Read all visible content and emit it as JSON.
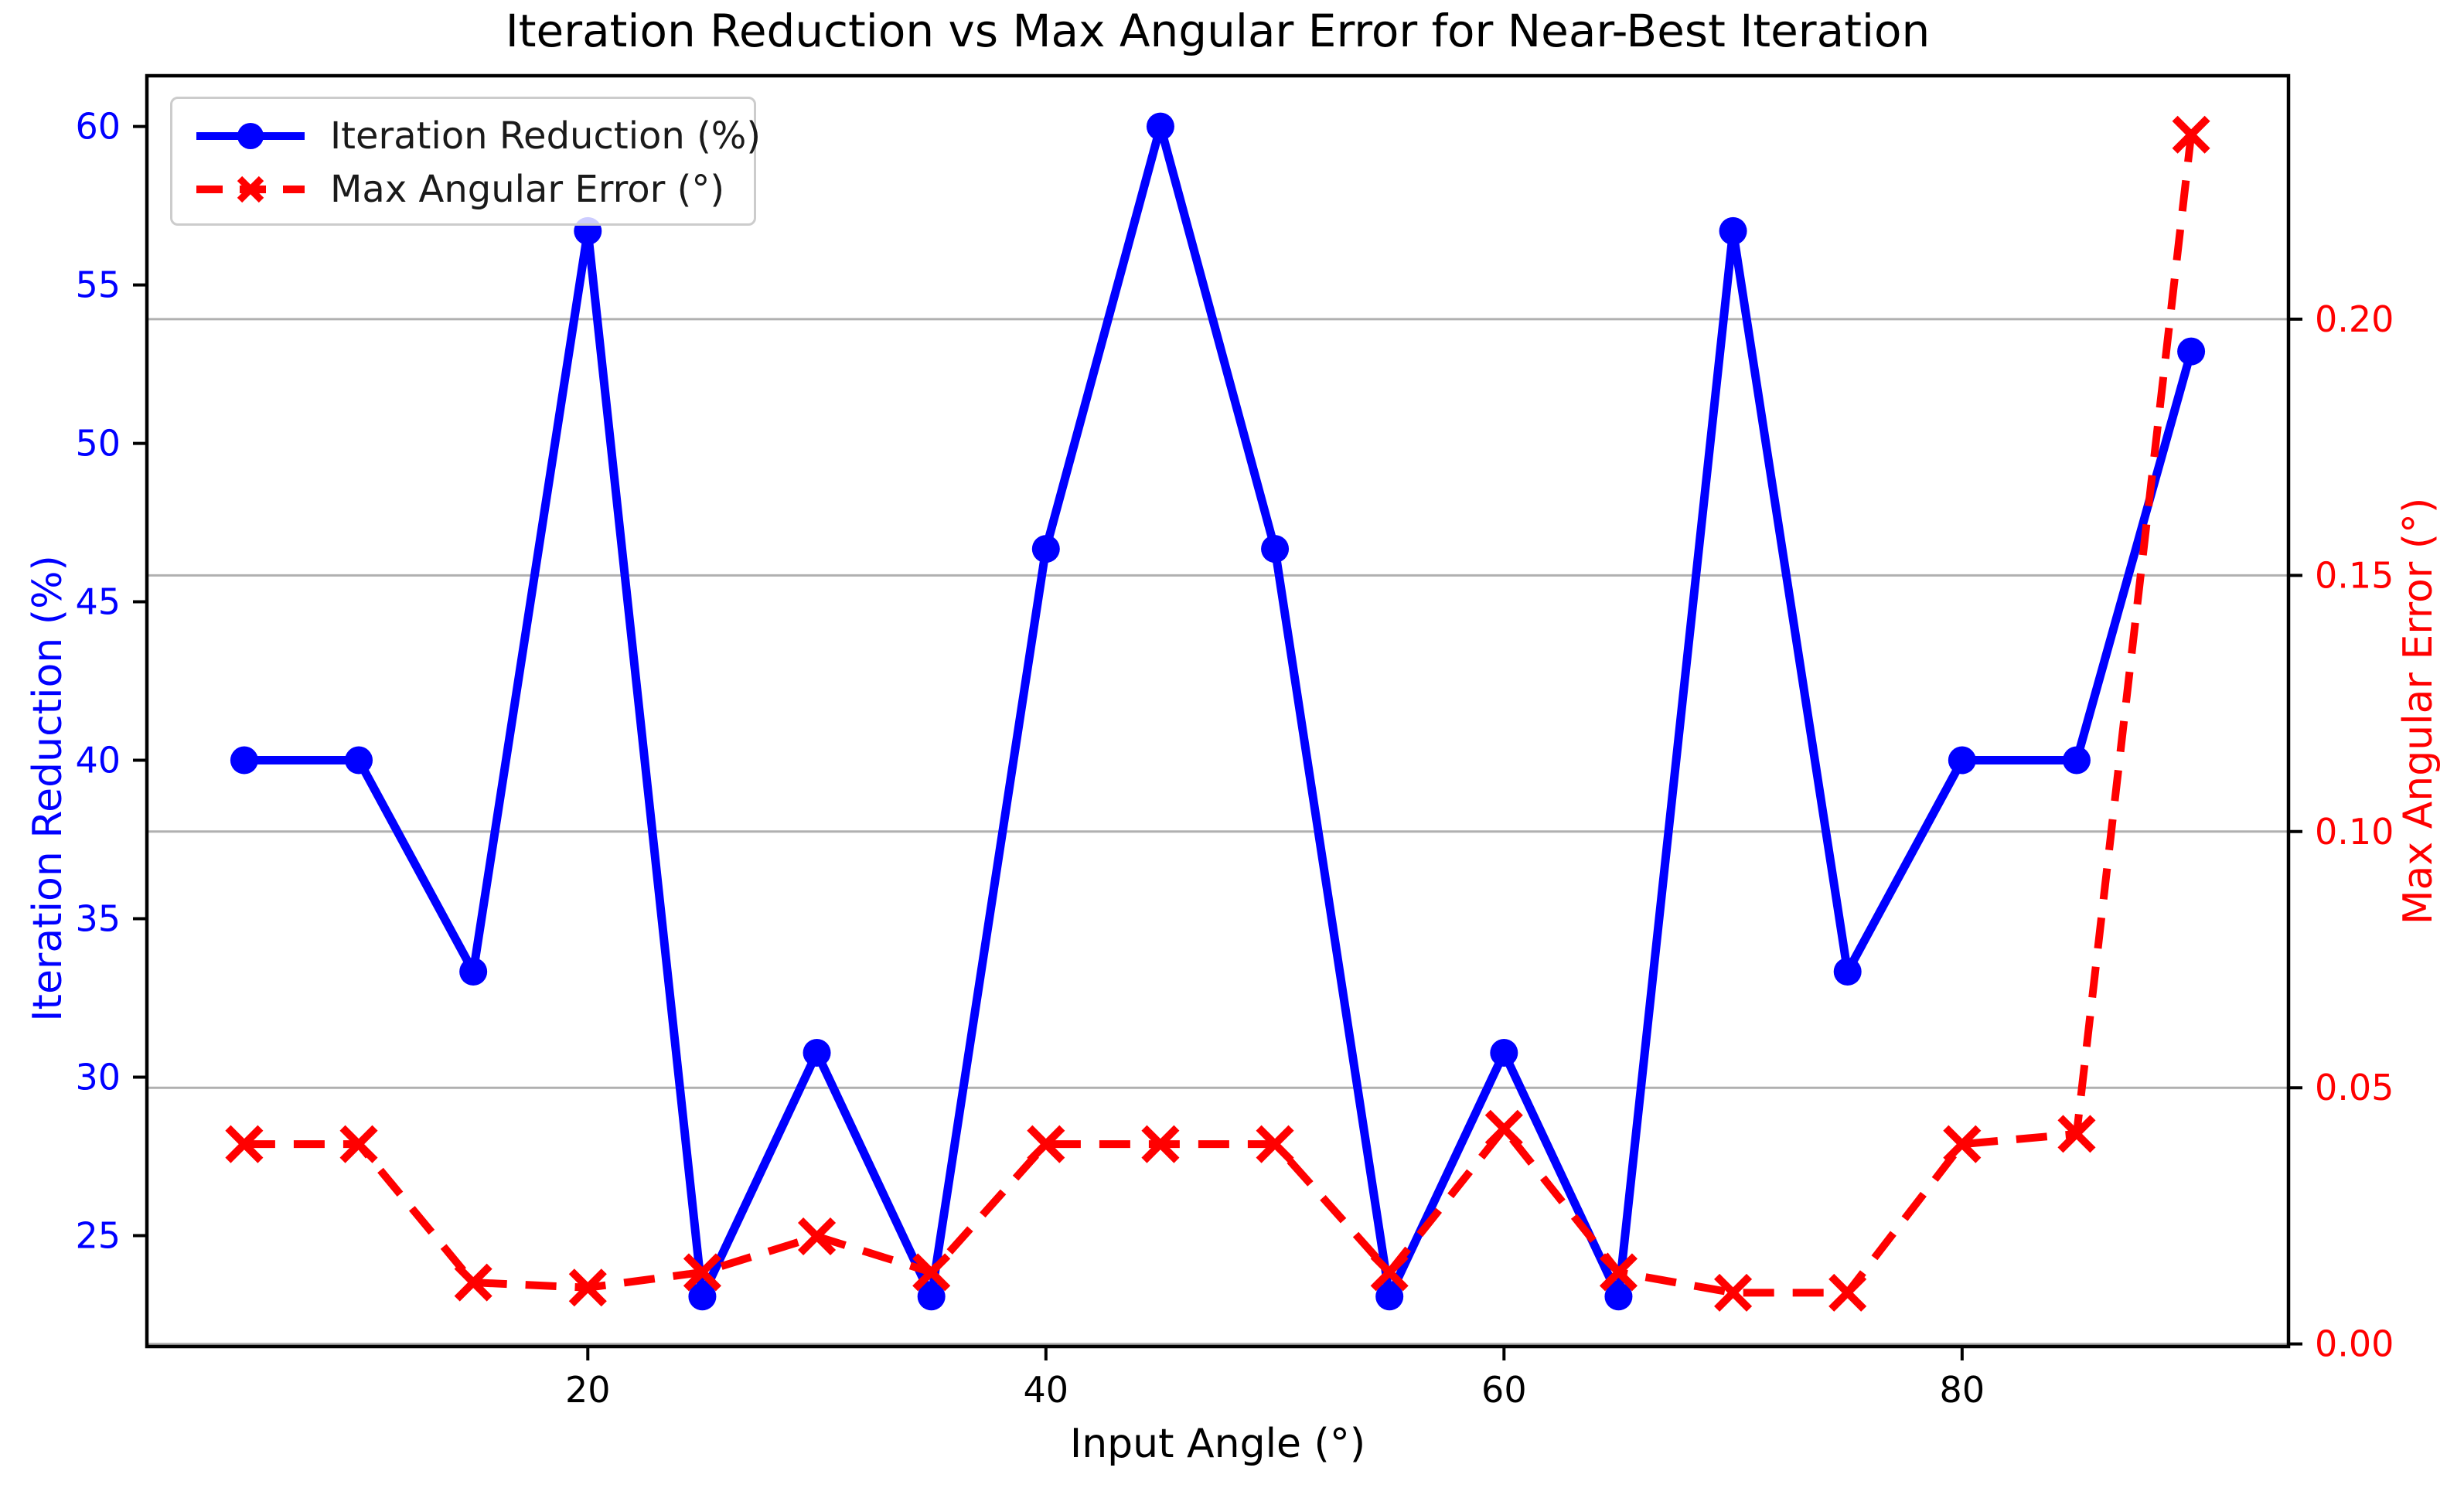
{
  "chart_data": {
    "type": "line",
    "title": "Iteration Reduction vs Max Angular Error for Near-Best Iteration",
    "xlabel": "Input Angle (°)",
    "ylabel_left": "Iteration Reduction (%)",
    "ylabel_right": "Max Angular Error (°)",
    "x": [
      5,
      10,
      15,
      20,
      25,
      30,
      35,
      40,
      45,
      50,
      55,
      60,
      65,
      70,
      75,
      80,
      85,
      90
    ],
    "series": [
      {
        "name": "Iteration Reduction (%)",
        "axis": "left",
        "color": "#0000ff",
        "linestyle": "solid",
        "marker": "circle",
        "values": [
          40.0,
          40.0,
          33.33,
          56.7,
          23.08,
          30.77,
          23.08,
          46.67,
          60.0,
          46.67,
          23.08,
          30.77,
          23.08,
          56.7,
          33.33,
          40.0,
          40.0,
          52.9
        ]
      },
      {
        "name": "Max Angular Error (°)",
        "axis": "right",
        "color": "#ff0000",
        "linestyle": "dashed",
        "marker": "x",
        "values": [
          0.039,
          0.039,
          0.012,
          0.011,
          0.014,
          0.021,
          0.014,
          0.039,
          0.039,
          0.039,
          0.014,
          0.042,
          0.014,
          0.01,
          0.01,
          0.039,
          0.041,
          0.236
        ]
      }
    ],
    "xlim": [
      0.75,
      94.25
    ],
    "ylim_left": [
      21.5,
      61.6
    ],
    "ylim_right": [
      -0.0005,
      0.2475
    ],
    "x_ticks": [
      20,
      40,
      60,
      80
    ],
    "x_tick_labels": [
      "20",
      "40",
      "60",
      "80"
    ],
    "left_ticks": [
      25,
      30,
      35,
      40,
      45,
      50,
      55,
      60
    ],
    "left_tick_labels": [
      "25",
      "30",
      "35",
      "40",
      "45",
      "50",
      "55",
      "60"
    ],
    "right_ticks": [
      0.0,
      0.05,
      0.1,
      0.15,
      0.2
    ],
    "right_tick_labels": [
      "0.00",
      "0.05",
      "0.10",
      "0.15",
      "0.20"
    ],
    "grid": "horizontal-on-right-ticks",
    "legend_position": "upper-left",
    "colors": {
      "left_series": "#0000ff",
      "right_series": "#ff0000",
      "grid": "#b0b0b0",
      "spine": "#000000",
      "background": "#ffffff"
    }
  },
  "legend": {
    "items": [
      {
        "label": "Iteration Reduction (%)"
      },
      {
        "label": "Max Angular Error (°)"
      }
    ]
  }
}
